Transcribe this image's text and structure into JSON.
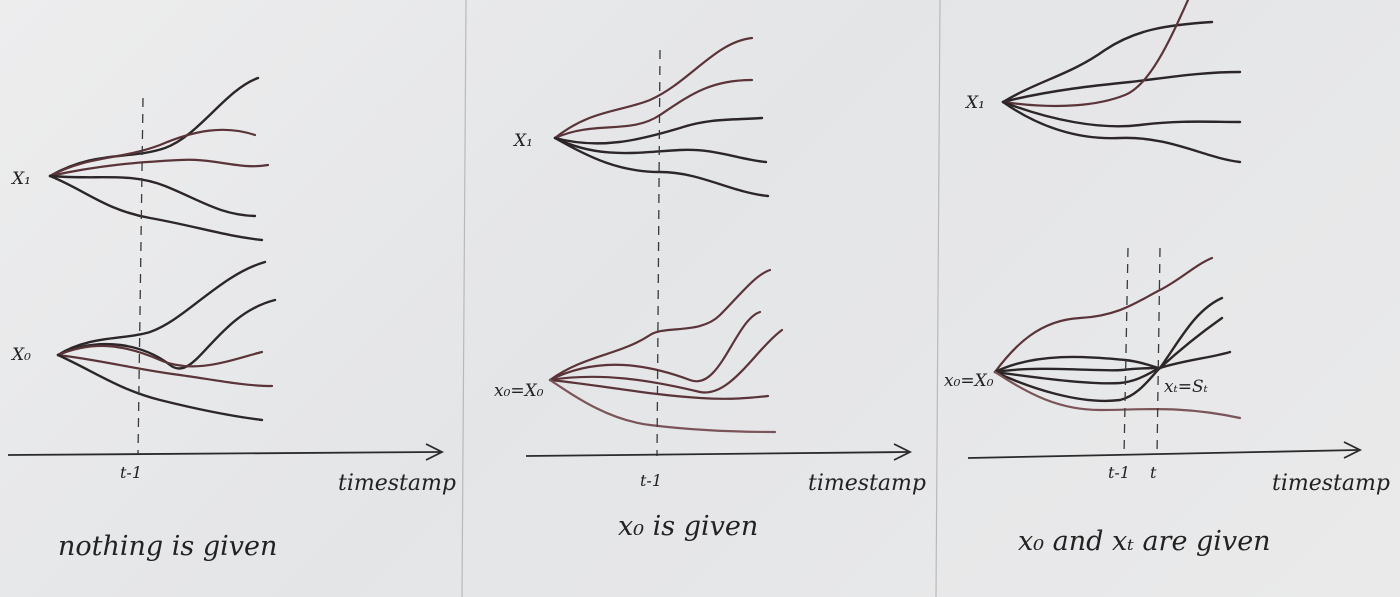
{
  "panels": [
    {
      "label_x1": "X₁",
      "label_x0": "X₀",
      "tick_labels": [
        "t-1"
      ],
      "axis_label": "timestamp",
      "caption": "nothing is given"
    },
    {
      "label_x1": "X₁",
      "label_x0": "x₀=X₀",
      "tick_labels": [
        "t-1"
      ],
      "axis_label": "timestamp",
      "caption": "x₀ is given"
    },
    {
      "label_x1": "X₁",
      "label_x0": "x₀=X₀",
      "label_xt": "xₜ=Sₜ",
      "tick_labels": [
        "t-1",
        "t"
      ],
      "axis_label": "timestamp",
      "caption": "x₀ and xₜ are given"
    }
  ],
  "colors": {
    "ink": "#2c2628",
    "ink_red": "#5a3438",
    "paper": "#e9e9ea"
  }
}
